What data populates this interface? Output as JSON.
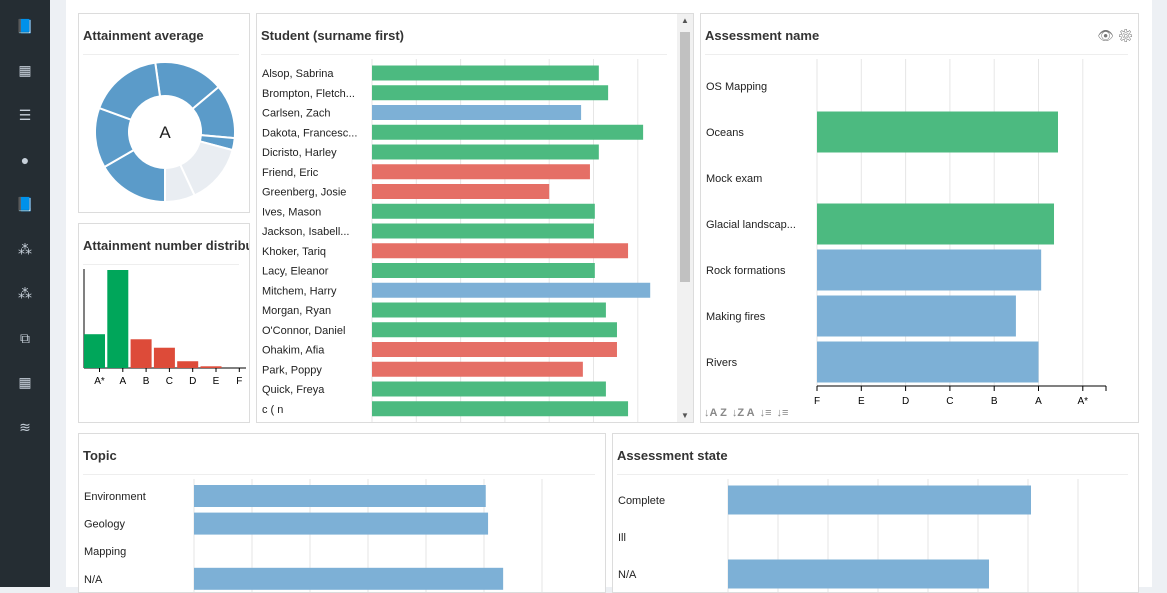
{
  "sidebar": {
    "icons": [
      "book-icon",
      "calendar-icon",
      "list-icon",
      "user-icon",
      "book-icon",
      "users-icon",
      "users-icon",
      "object-group-icon",
      "calendar-icon",
      "database-icon"
    ]
  },
  "colors": {
    "green": "#48b97d",
    "red": "#e46c63",
    "blue": "#7aaed5",
    "donut_blue": "#5b9bc9",
    "donut_light": "#e9edf2",
    "hist_green": "#00a65a",
    "hist_red": "#dd4b39"
  },
  "attainment_average": {
    "title": "Attainment average",
    "center_label": "A",
    "segments": [
      {
        "value": 58,
        "filled": true
      },
      {
        "value": 45,
        "filled": true
      },
      {
        "value": 10,
        "filled": true
      },
      {
        "value": 50,
        "filled": false
      },
      {
        "value": 25,
        "filled": false
      },
      {
        "value": 60,
        "filled": true
      },
      {
        "value": 50,
        "filled": true
      },
      {
        "value": 62,
        "filled": true
      }
    ]
  },
  "attainment_distribution": {
    "title": "Attainment number distribution",
    "categories": [
      "A*",
      "A",
      "B",
      "C",
      "D",
      "E",
      "F"
    ],
    "values": [
      10,
      29,
      8.5,
      6,
      2,
      0.5,
      0
    ],
    "colors": [
      "green",
      "green",
      "red",
      "red",
      "red",
      "red",
      "red"
    ]
  },
  "students": {
    "title": "Student (surname first)",
    "grid_count": 7,
    "max": 7,
    "rows": [
      {
        "name": "Alsop, Sabrina",
        "value": 5.12,
        "color": "green"
      },
      {
        "name": "Brompton, Fletch...",
        "value": 5.33,
        "color": "green"
      },
      {
        "name": "Carlsen, Zach",
        "value": 4.72,
        "color": "blue"
      },
      {
        "name": "Dakota, Francesc...",
        "value": 6.12,
        "color": "green"
      },
      {
        "name": "Dicristo, Harley",
        "value": 5.12,
        "color": "green"
      },
      {
        "name": "Friend, Eric",
        "value": 4.92,
        "color": "red"
      },
      {
        "name": "Greenberg, Josie",
        "value": 4.0,
        "color": "red"
      },
      {
        "name": "Ives, Mason",
        "value": 5.03,
        "color": "green"
      },
      {
        "name": "Jackson, Isabell...",
        "value": 5.01,
        "color": "green"
      },
      {
        "name": "Khoker, Tariq",
        "value": 5.78,
        "color": "red"
      },
      {
        "name": "Lacy, Eleanor",
        "value": 5.03,
        "color": "green"
      },
      {
        "name": "Mitchem, Harry",
        "value": 6.28,
        "color": "blue"
      },
      {
        "name": "Morgan, Ryan",
        "value": 5.28,
        "color": "green"
      },
      {
        "name": "O'Connor, Daniel",
        "value": 5.53,
        "color": "green"
      },
      {
        "name": "Ohakim, Afia",
        "value": 5.53,
        "color": "red"
      },
      {
        "name": "Park, Poppy",
        "value": 4.76,
        "color": "red"
      },
      {
        "name": "Quick, Freya",
        "value": 5.28,
        "color": "green"
      },
      {
        "name": "c  (  n",
        "value": 5.78,
        "color": "green"
      }
    ]
  },
  "assessments": {
    "title": "Assessment name",
    "axis": [
      "F",
      "E",
      "D",
      "C",
      "B",
      "A",
      "A*"
    ],
    "rows": [
      {
        "name": "OS Mapping",
        "value": null,
        "color": "green"
      },
      {
        "name": "Oceans",
        "value": 5.44,
        "color": "green"
      },
      {
        "name": "Mock exam",
        "value": null,
        "color": "green"
      },
      {
        "name": "Glacial landscap...",
        "value": 5.35,
        "color": "green"
      },
      {
        "name": "Rock formations",
        "value": 5.06,
        "color": "blue"
      },
      {
        "name": "Making fires",
        "value": 4.49,
        "color": "blue"
      },
      {
        "name": "Rivers",
        "value": 5.0,
        "color": "blue"
      }
    ],
    "sort_buttons": [
      "↓A Z",
      "↓Z A",
      "↓≡",
      "↓≡"
    ]
  },
  "topic": {
    "title": "Topic",
    "rows": [
      {
        "name": "Environment",
        "value": 5.03
      },
      {
        "name": "Geology",
        "value": 5.07
      },
      {
        "name": "Mapping",
        "value": null
      },
      {
        "name": "N/A",
        "value": 5.33
      }
    ]
  },
  "assessment_state": {
    "title": "Assessment state",
    "rows": [
      {
        "name": "Complete",
        "value": 6.06
      },
      {
        "name": "Ill",
        "value": null
      },
      {
        "name": "N/A",
        "value": 5.22
      }
    ]
  }
}
